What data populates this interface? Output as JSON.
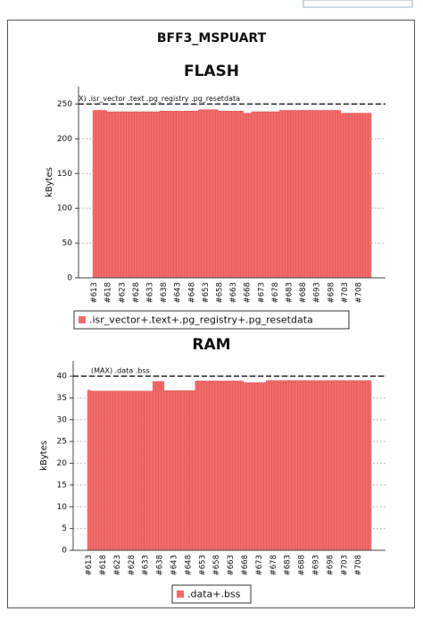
{
  "page": {
    "title": "BFF3_MSPUART"
  },
  "chart_data": [
    {
      "type": "bar",
      "title": "FLASH",
      "y_label": "kBytes",
      "categories": [
        "#613",
        null,
        null,
        null,
        null,
        "#618",
        null,
        null,
        null,
        null,
        "#623",
        null,
        null,
        null,
        null,
        "#628",
        null,
        null,
        null,
        null,
        "#633",
        null,
        null,
        null,
        null,
        "#638",
        null,
        null,
        null,
        null,
        "#643",
        null,
        null,
        null,
        null,
        "#648",
        null,
        null,
        null,
        null,
        "#653",
        null,
        null,
        null,
        null,
        "#658",
        null,
        null,
        null,
        null,
        "#663",
        null,
        null,
        null,
        null,
        "#668",
        null,
        null,
        null,
        null,
        "#673",
        null,
        null,
        null,
        null,
        "#678",
        null,
        null,
        null,
        null,
        "#683",
        null,
        null,
        null,
        null,
        "#688",
        null,
        null,
        null,
        null,
        "#693",
        null,
        null,
        null,
        null,
        "#698",
        null,
        null,
        null,
        null,
        "#703",
        null,
        null,
        null,
        null,
        "#708",
        null,
        null,
        null,
        null
      ],
      "series": [
        {
          "name": ".isr_vector+.text+.pg_registry+.pg_resetdata",
          "color": "#f26b6b",
          "values": [
            241,
            241,
            241,
            241,
            241,
            239,
            239,
            239,
            239,
            239,
            239,
            239,
            239,
            239,
            239,
            239,
            239,
            239,
            239,
            239,
            239,
            239,
            239,
            239,
            240,
            240,
            240,
            240,
            240,
            240,
            240,
            240,
            240,
            240,
            240,
            240,
            240,
            240,
            242,
            242,
            242,
            242,
            242,
            242,
            242,
            240,
            240,
            240,
            240,
            240,
            240,
            240,
            240,
            240,
            237,
            237,
            237,
            239,
            239,
            239,
            239,
            239,
            239,
            239,
            239,
            239,
            239,
            241,
            241,
            241,
            241,
            241,
            241,
            241,
            241,
            241,
            241,
            241,
            241,
            241,
            241,
            241,
            241,
            241,
            241,
            241,
            241,
            241,
            241,
            237,
            237,
            237,
            237,
            237,
            237,
            237,
            237,
            237,
            237,
            237
          ]
        }
      ],
      "threshold": {
        "value": 250,
        "label": "X) .isr_vector .text .pg_registry .pg_resetdata"
      },
      "ylim": [
        0,
        275
      ],
      "yticks": [
        0,
        50,
        100,
        150,
        200,
        250
      ],
      "grid": true
    },
    {
      "type": "bar",
      "title": "RAM",
      "y_label": "kBytes",
      "categories": [
        "#613",
        null,
        null,
        null,
        null,
        "#618",
        null,
        null,
        null,
        null,
        "#623",
        null,
        null,
        null,
        null,
        "#628",
        null,
        null,
        null,
        null,
        "#633",
        null,
        null,
        null,
        null,
        "#638",
        null,
        null,
        null,
        null,
        "#643",
        null,
        null,
        null,
        null,
        "#648",
        null,
        null,
        null,
        null,
        "#653",
        null,
        null,
        null,
        null,
        "#658",
        null,
        null,
        null,
        null,
        "#663",
        null,
        null,
        null,
        null,
        "#668",
        null,
        null,
        null,
        null,
        "#673",
        null,
        null,
        null,
        null,
        "#678",
        null,
        null,
        null,
        null,
        "#683",
        null,
        null,
        null,
        null,
        "#688",
        null,
        null,
        null,
        null,
        "#693",
        null,
        null,
        null,
        null,
        "#698",
        null,
        null,
        null,
        null,
        "#703",
        null,
        null,
        null,
        null,
        "#708",
        null,
        null,
        null,
        null
      ],
      "series": [
        {
          "name": ".data+.bss",
          "color": "#f26b6b",
          "values": [
            36.8,
            36.6,
            36.6,
            36.6,
            36.6,
            36.6,
            36.6,
            36.6,
            36.6,
            36.6,
            36.6,
            36.6,
            36.6,
            36.6,
            36.6,
            36.6,
            36.6,
            36.6,
            36.6,
            36.6,
            36.6,
            36.6,
            36.6,
            38.8,
            38.8,
            38.8,
            38.8,
            36.7,
            36.7,
            36.7,
            36.7,
            36.7,
            36.7,
            36.7,
            36.7,
            36.7,
            36.7,
            36.7,
            38.9,
            38.9,
            38.9,
            38.9,
            38.9,
            38.9,
            38.9,
            38.9,
            38.9,
            38.9,
            38.9,
            38.9,
            38.9,
            38.9,
            38.9,
            38.9,
            38.9,
            38.5,
            38.5,
            38.5,
            38.5,
            38.5,
            38.5,
            38.5,
            38.5,
            39,
            39,
            39,
            39,
            39,
            39,
            39,
            39,
            39,
            39,
            39,
            39,
            39,
            39,
            39,
            39,
            39,
            39,
            39,
            39,
            39,
            39,
            39,
            39,
            39,
            39,
            39,
            39,
            39,
            39,
            39,
            39,
            39,
            39,
            39,
            39,
            39
          ]
        }
      ],
      "threshold": {
        "value": 40,
        "label": "(MAX) .data .bss"
      },
      "ylim": [
        0,
        43.5
      ],
      "yticks": [
        0,
        5,
        10,
        15,
        20,
        25,
        30,
        35,
        40
      ],
      "grid": true
    }
  ]
}
